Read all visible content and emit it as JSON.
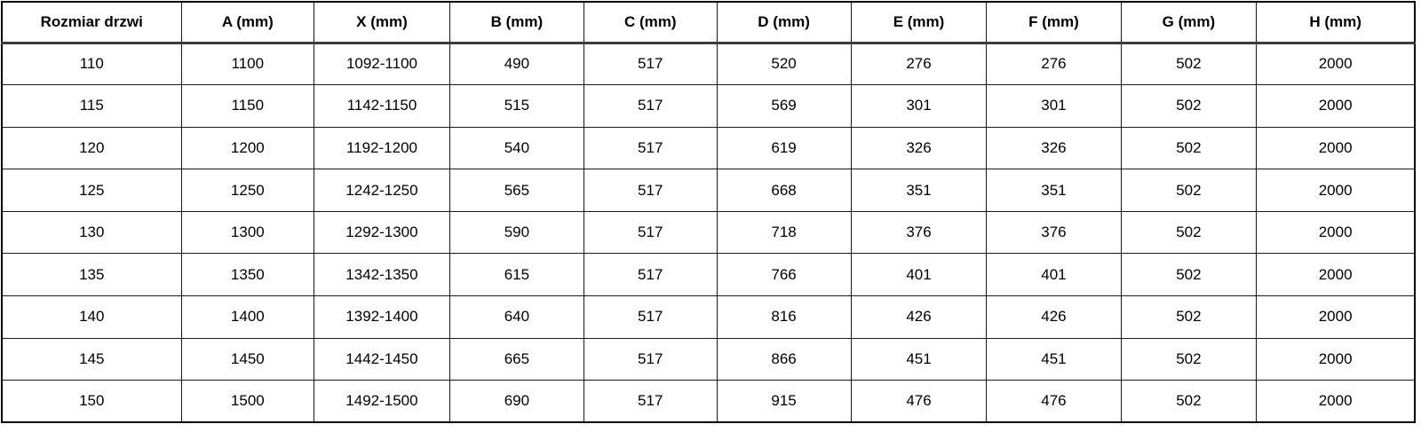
{
  "chart_data": {
    "type": "table",
    "title": "",
    "columns": [
      "Rozmiar drzwi",
      "A (mm)",
      "X (mm)",
      "B (mm)",
      "C (mm)",
      "D (mm)",
      "E (mm)",
      "F (mm)",
      "G (mm)",
      "H (mm)"
    ],
    "rows": [
      [
        "110",
        "1100",
        "1092-1100",
        "490",
        "517",
        "520",
        "276",
        "276",
        "502",
        "2000"
      ],
      [
        "115",
        "1150",
        "1142-1150",
        "515",
        "517",
        "569",
        "301",
        "301",
        "502",
        "2000"
      ],
      [
        "120",
        "1200",
        "1192-1200",
        "540",
        "517",
        "619",
        "326",
        "326",
        "502",
        "2000"
      ],
      [
        "125",
        "1250",
        "1242-1250",
        "565",
        "517",
        "668",
        "351",
        "351",
        "502",
        "2000"
      ],
      [
        "130",
        "1300",
        "1292-1300",
        "590",
        "517",
        "718",
        "376",
        "376",
        "502",
        "2000"
      ],
      [
        "135",
        "1350",
        "1342-1350",
        "615",
        "517",
        "766",
        "401",
        "401",
        "502",
        "2000"
      ],
      [
        "140",
        "1400",
        "1392-1400",
        "640",
        "517",
        "816",
        "426",
        "426",
        "502",
        "2000"
      ],
      [
        "145",
        "1450",
        "1442-1450",
        "665",
        "517",
        "866",
        "451",
        "451",
        "502",
        "2000"
      ],
      [
        "150",
        "1500",
        "1492-1500",
        "690",
        "517",
        "915",
        "476",
        "476",
        "502",
        "2000"
      ]
    ],
    "layout": {
      "grid": true,
      "header_row": true,
      "text_align": "center"
    }
  },
  "colors": {
    "background": "#ffffff",
    "border": "#1a1a1a",
    "header_rule": "#3c3c3c",
    "text": "#000000"
  }
}
